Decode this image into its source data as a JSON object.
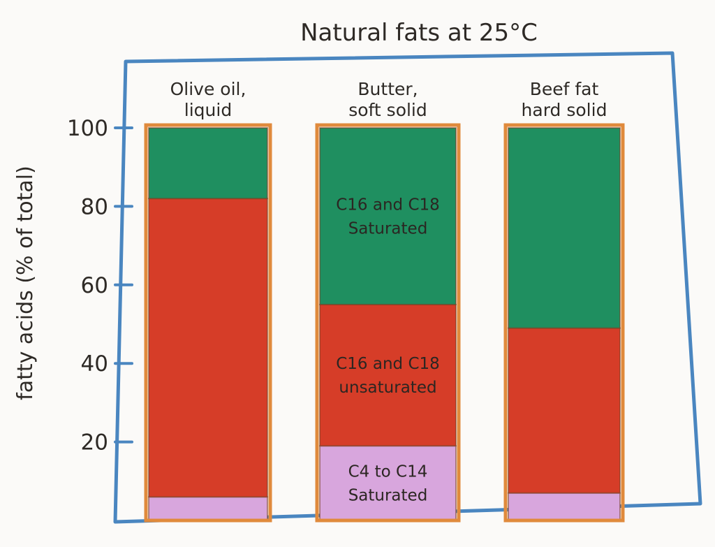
{
  "chart_data": {
    "type": "bar",
    "stacked": true,
    "title": "Natural fats at 25°C",
    "ylabel": "fatty acids (% of total)",
    "xlabel": "",
    "ylim": [
      0,
      100
    ],
    "yticks": [
      20,
      40,
      60,
      80,
      100
    ],
    "grid": false,
    "categories": [
      [
        "Olive oil,",
        "liquid"
      ],
      [
        "Butter,",
        "soft solid"
      ],
      [
        "Beef fat",
        "hard solid"
      ]
    ],
    "series": [
      {
        "name": "C4 to C14 saturated",
        "color": "#d8a6dd",
        "values": [
          6,
          19,
          7
        ]
      },
      {
        "name": "C16 and C18 unsaturated",
        "color": "#d63d28",
        "values": [
          76,
          36,
          42
        ]
      },
      {
        "name": "C16 and C18 saturated",
        "color": "#1f8f60",
        "values": [
          18,
          45,
          51
        ]
      }
    ],
    "annotations": [
      {
        "bar": 1,
        "series": 2,
        "lines": [
          "C16 and C18",
          "Saturated"
        ]
      },
      {
        "bar": 1,
        "series": 1,
        "lines": [
          "C16 and C18",
          "unsaturated"
        ]
      },
      {
        "bar": 1,
        "series": 0,
        "lines": [
          "C4 to C14",
          "Saturated"
        ]
      }
    ]
  }
}
